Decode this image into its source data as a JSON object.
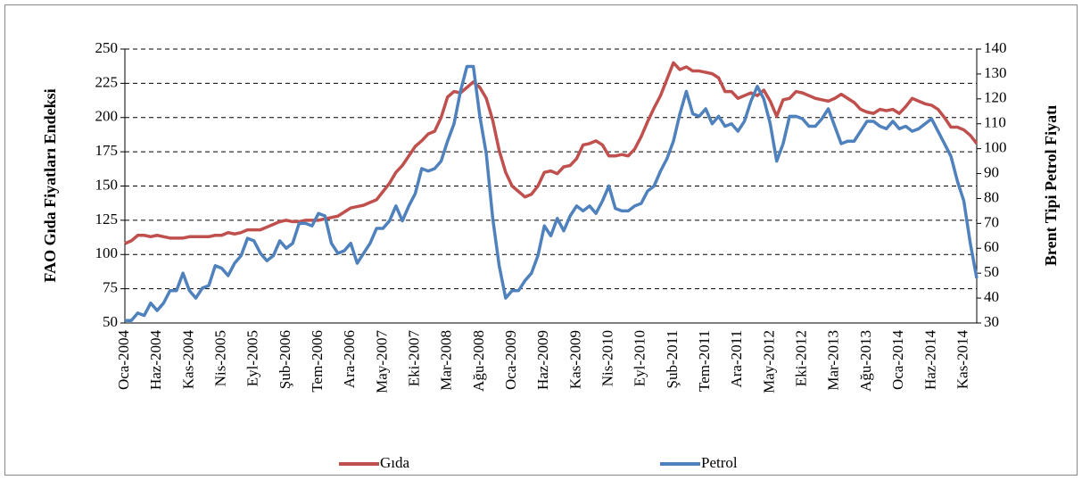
{
  "chart_data": {
    "type": "line",
    "y_label": "FAO Gıda Fiyatları Endeksi",
    "y2_label": "Brent Tipi Petrol Fiyatı",
    "categories": [
      "Oca-2004",
      null,
      null,
      null,
      null,
      "Haz-2004",
      null,
      null,
      null,
      null,
      "Kas-2004",
      null,
      null,
      null,
      null,
      "Nis-2005",
      null,
      null,
      null,
      null,
      "Eyl-2005",
      null,
      null,
      null,
      null,
      "Şub-2006",
      null,
      null,
      null,
      null,
      "Tem-2006",
      null,
      null,
      null,
      null,
      "Ara-2006",
      null,
      null,
      null,
      null,
      "May-2007",
      null,
      null,
      null,
      null,
      "Eki-2007",
      null,
      null,
      null,
      null,
      "Mar-2008",
      null,
      null,
      null,
      null,
      "Ağu-2008",
      null,
      null,
      null,
      null,
      "Oca-2009",
      null,
      null,
      null,
      null,
      "Haz-2009",
      null,
      null,
      null,
      null,
      "Kas-2009",
      null,
      null,
      null,
      null,
      "Nis-2010",
      null,
      null,
      null,
      null,
      "Eyl-2010",
      null,
      null,
      null,
      null,
      "Şub-2011",
      null,
      null,
      null,
      null,
      "Tem-2011",
      null,
      null,
      null,
      null,
      "Ara-2011",
      null,
      null,
      null,
      null,
      "May-2012",
      null,
      null,
      null,
      null,
      "Eki-2012",
      null,
      null,
      null,
      null,
      "Mar-2013",
      null,
      null,
      null,
      null,
      "Ağu-2013",
      null,
      null,
      null,
      null,
      "Oca-2014",
      null,
      null,
      null,
      null,
      "Haz-2014",
      null,
      null,
      null,
      null,
      "Kas-2014",
      null,
      null
    ],
    "series": [
      {
        "name": "Gıda",
        "color": "#c0504d",
        "values": [
          108,
          110,
          114,
          114,
          113,
          114,
          113,
          112,
          112,
          112,
          113,
          113,
          113,
          113,
          114,
          114,
          116,
          115,
          116,
          118,
          118,
          118,
          120,
          122,
          124,
          125,
          124,
          124,
          125,
          125,
          125,
          126,
          127,
          128,
          131,
          134,
          135,
          136,
          138,
          140,
          146,
          152,
          160,
          165,
          172,
          179,
          183,
          188,
          190,
          200,
          215,
          219,
          218,
          222,
          226,
          222,
          214,
          198,
          176,
          160,
          150,
          146,
          142,
          144,
          150,
          160,
          161,
          159,
          164,
          165,
          170,
          180,
          181,
          183,
          180,
          172,
          172,
          173,
          172,
          177,
          186,
          197,
          207,
          216,
          228,
          240,
          235,
          237,
          234,
          234,
          233,
          232,
          229,
          219,
          219,
          214,
          216,
          218,
          216,
          220,
          212,
          201,
          213,
          214,
          219,
          218,
          216,
          214,
          213,
          212,
          214,
          217,
          214,
          211,
          206,
          204,
          203,
          206,
          205,
          206,
          203,
          208,
          214,
          212,
          210,
          209,
          206,
          200,
          193,
          193,
          191,
          187,
          181
        ]
      },
      {
        "name": "Petrol",
        "color": "#4f81bd",
        "axis": "y2",
        "values": [
          31,
          31,
          34,
          33,
          38,
          35,
          38,
          43,
          43,
          50,
          43,
          40,
          44,
          45,
          53,
          52,
          49,
          54,
          57,
          64,
          63,
          58,
          55,
          57,
          63,
          60,
          62,
          70,
          70,
          69,
          74,
          73,
          62,
          58,
          59,
          62,
          54,
          58,
          62,
          68,
          68,
          71,
          77,
          71,
          77,
          82,
          92,
          91,
          92,
          95,
          103,
          110,
          123,
          133,
          133,
          113,
          98,
          72,
          53,
          40,
          43,
          43,
          47,
          50,
          57,
          69,
          65,
          72,
          67,
          73,
          77,
          75,
          77,
          74,
          79,
          85,
          76,
          75,
          75,
          77,
          78,
          83,
          85,
          91,
          96,
          103,
          114,
          123,
          114,
          113,
          116,
          110,
          113,
          109,
          110,
          107,
          111,
          119,
          125,
          120,
          110,
          95,
          102,
          113,
          113,
          112,
          109,
          109,
          112,
          116,
          109,
          102,
          103,
          103,
          107,
          111,
          111,
          109,
          108,
          111,
          108,
          109,
          107,
          108,
          110,
          112,
          107,
          102,
          97,
          87,
          79,
          62,
          48
        ]
      }
    ],
    "ylim": [
      50,
      250
    ],
    "yticks": [
      50,
      75,
      100,
      125,
      150,
      175,
      200,
      225,
      250
    ],
    "y2lim": [
      30,
      140
    ],
    "y2ticks": [
      30,
      40,
      50,
      60,
      70,
      80,
      90,
      100,
      110,
      120,
      130,
      140
    ],
    "grid": true,
    "legend": "bottom"
  }
}
